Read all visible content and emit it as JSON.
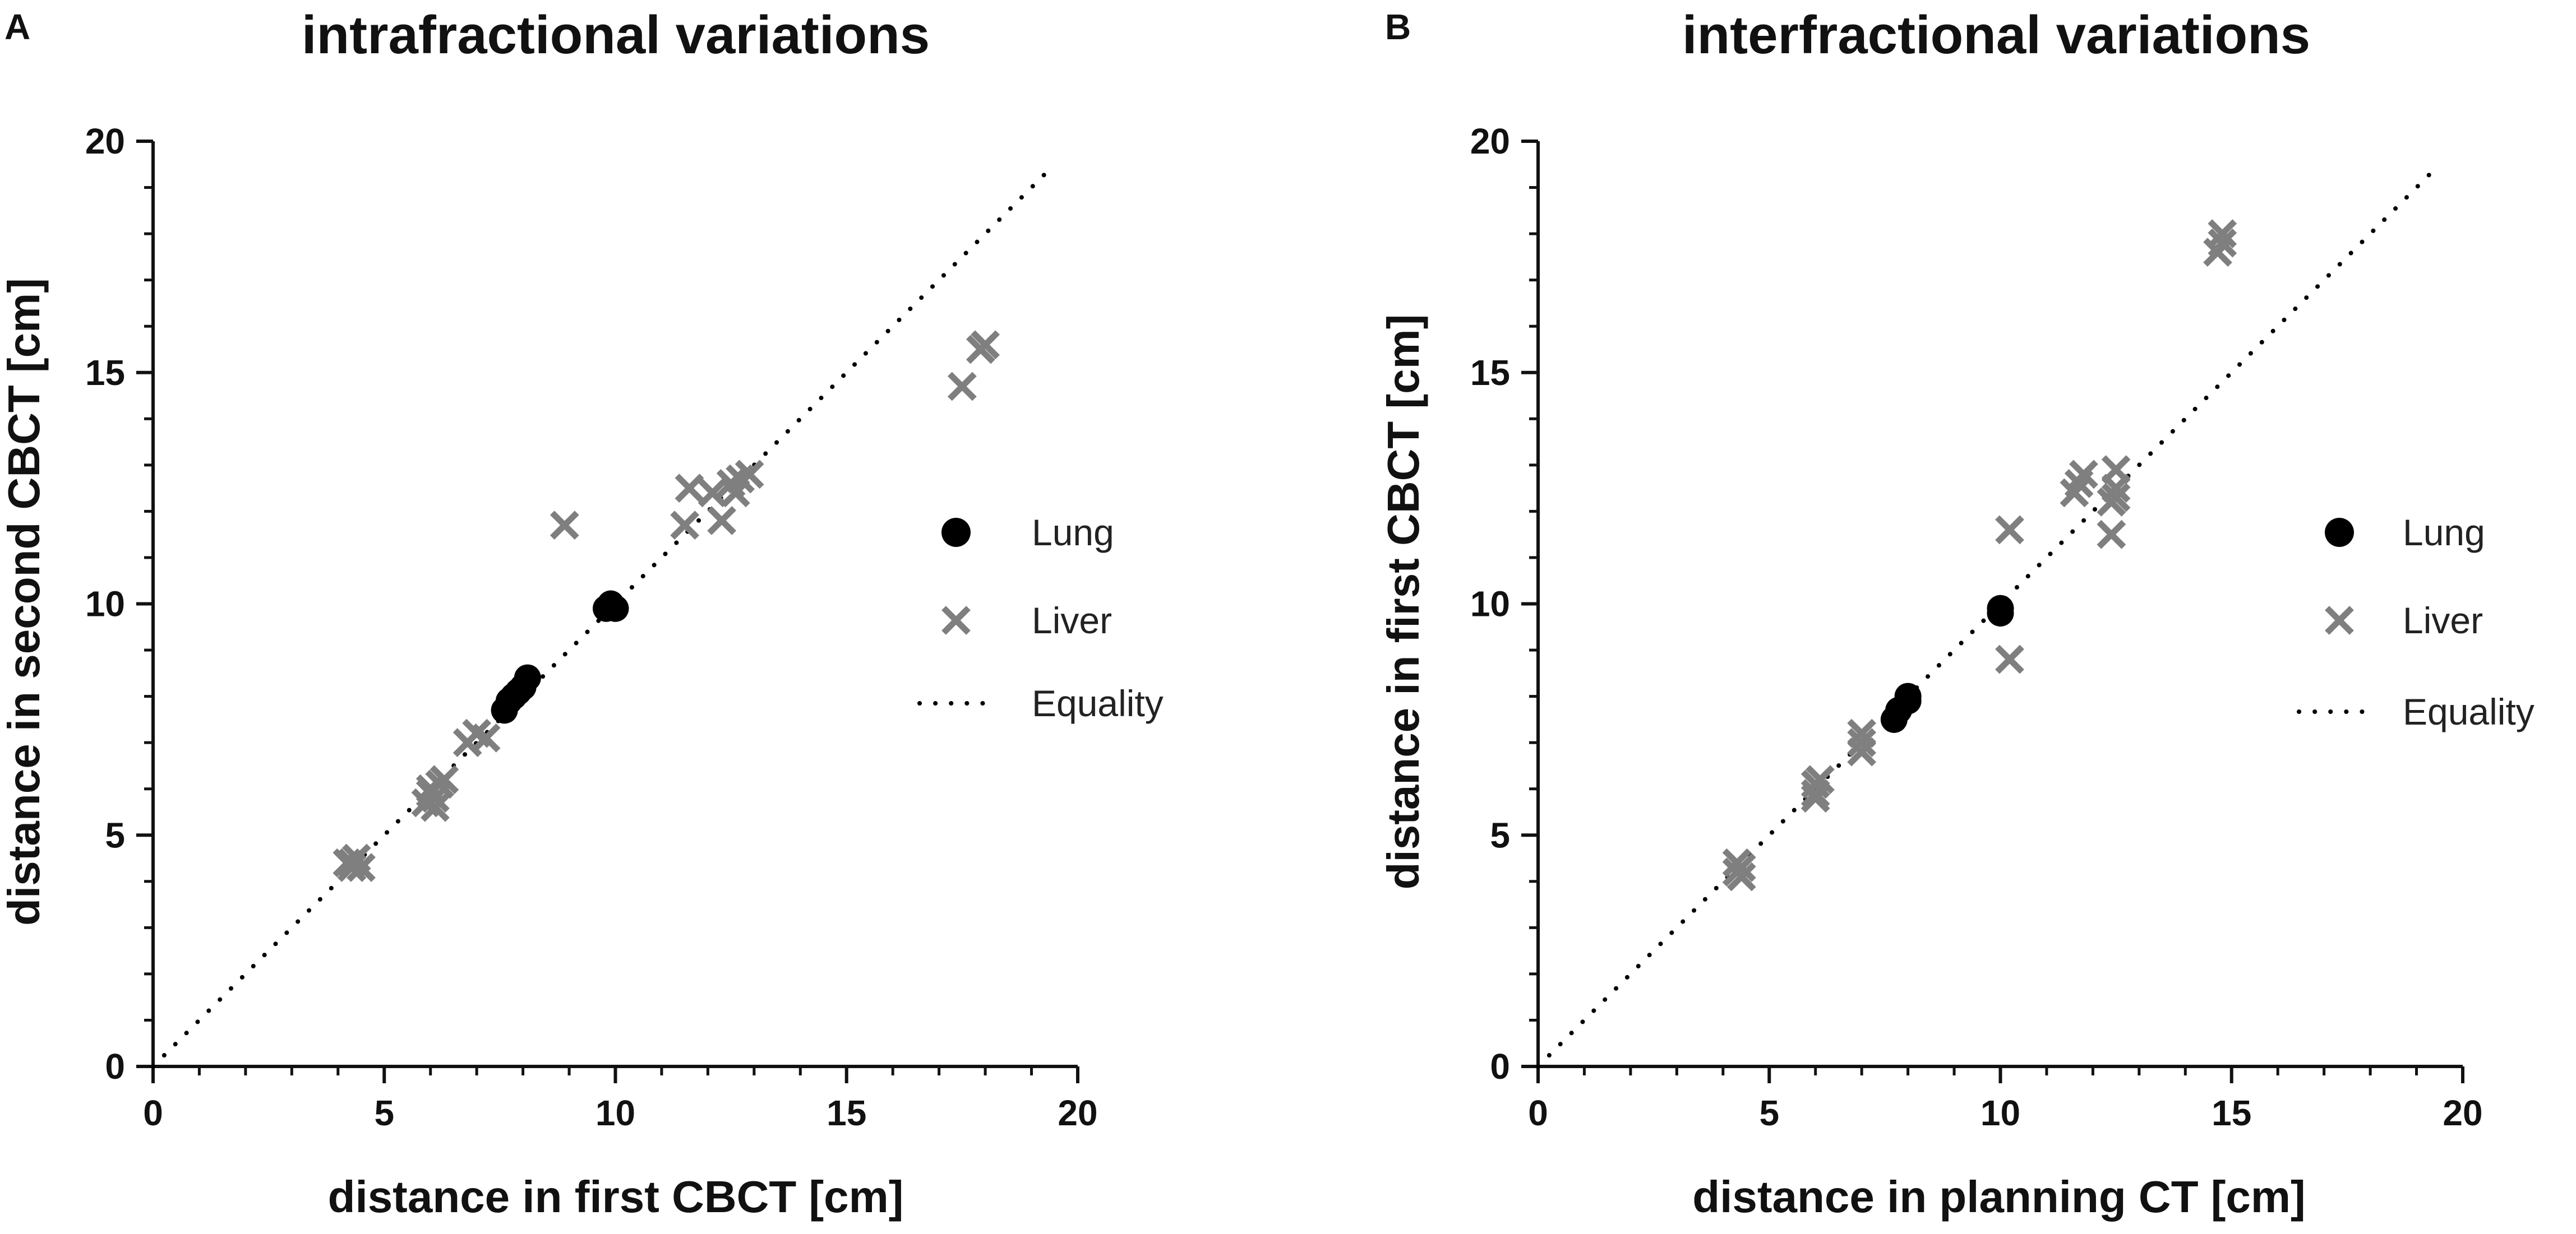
{
  "chart_data": [
    {
      "panel_label": "A",
      "title": "intrafractional variations",
      "type": "scatter",
      "xlabel": "distance in first CBCT [cm]",
      "ylabel": "distance in second CBCT [cm]",
      "xlim": [
        0,
        20
      ],
      "ylim": [
        0,
        20
      ],
      "ticks": [
        "0",
        "5",
        "10",
        "15",
        "20"
      ],
      "series": [
        {
          "name": "Lung",
          "marker": "circle",
          "color": "#000000",
          "points": [
            [
              7.6,
              7.7
            ],
            [
              7.7,
              7.9
            ],
            [
              7.8,
              8.0
            ],
            [
              7.9,
              8.1
            ],
            [
              8.0,
              8.2
            ],
            [
              8.1,
              8.4
            ],
            [
              9.8,
              9.9
            ],
            [
              9.9,
              10.0
            ],
            [
              10.0,
              9.9
            ]
          ]
        },
        {
          "name": "Liver",
          "marker": "x",
          "color": "#7f7f7f",
          "points": [
            [
              4.2,
              4.4
            ],
            [
              4.3,
              4.3
            ],
            [
              4.4,
              4.5
            ],
            [
              4.5,
              4.3
            ],
            [
              4.3,
              4.4
            ],
            [
              5.9,
              5.7
            ],
            [
              6.0,
              5.9
            ],
            [
              6.1,
              5.8
            ],
            [
              6.2,
              6.1
            ],
            [
              6.0,
              6.0
            ],
            [
              6.3,
              6.2
            ],
            [
              6.1,
              5.6
            ],
            [
              6.8,
              7.0
            ],
            [
              7.0,
              7.2
            ],
            [
              7.2,
              7.1
            ],
            [
              8.9,
              11.7
            ],
            [
              11.5,
              11.7
            ],
            [
              11.6,
              12.5
            ],
            [
              12.1,
              12.4
            ],
            [
              12.3,
              11.8
            ],
            [
              12.5,
              12.6
            ],
            [
              12.6,
              12.4
            ],
            [
              12.7,
              12.7
            ],
            [
              12.9,
              12.8
            ],
            [
              17.5,
              14.7
            ],
            [
              17.9,
              15.5
            ],
            [
              18.0,
              15.6
            ]
          ]
        },
        {
          "name": "Equality",
          "marker": "dotted-line",
          "color": "#000000",
          "points": [
            [
              0,
              0
            ],
            [
              19.5,
              19.5
            ]
          ]
        }
      ],
      "legend": {
        "position": "right",
        "entries": [
          "Lung",
          "Liver",
          "Equality"
        ]
      }
    },
    {
      "panel_label": "B",
      "title": "interfractional variations",
      "type": "scatter",
      "xlabel": "distance in planning CT [cm]",
      "ylabel": "distance in first CBCT [cm]",
      "xlim": [
        0,
        20
      ],
      "ylim": [
        0,
        20
      ],
      "ticks": [
        "0",
        "5",
        "10",
        "15",
        "20"
      ],
      "series": [
        {
          "name": "Lung",
          "marker": "circle",
          "color": "#000000",
          "points": [
            [
              7.7,
              7.5
            ],
            [
              7.8,
              7.7
            ],
            [
              8.0,
              7.9
            ],
            [
              8.0,
              8.0
            ],
            [
              10.0,
              9.8
            ],
            [
              10.0,
              9.9
            ]
          ]
        },
        {
          "name": "Liver",
          "marker": "x",
          "color": "#7f7f7f",
          "points": [
            [
              4.3,
              4.2
            ],
            [
              4.4,
              4.3
            ],
            [
              4.3,
              4.4
            ],
            [
              4.4,
              4.1
            ],
            [
              6.0,
              5.9
            ],
            [
              6.0,
              6.1
            ],
            [
              6.1,
              6.2
            ],
            [
              6.0,
              5.8
            ],
            [
              7.0,
              6.8
            ],
            [
              7.0,
              7.0
            ],
            [
              7.0,
              7.2
            ],
            [
              10.2,
              8.8
            ],
            [
              10.2,
              11.6
            ],
            [
              11.6,
              12.4
            ],
            [
              11.7,
              12.6
            ],
            [
              11.8,
              12.8
            ],
            [
              12.4,
              12.2
            ],
            [
              12.5,
              12.5
            ],
            [
              12.5,
              12.9
            ],
            [
              12.4,
              11.5
            ],
            [
              12.5,
              12.3
            ],
            [
              14.7,
              17.6
            ],
            [
              14.8,
              17.8
            ],
            [
              14.8,
              18.0
            ]
          ]
        },
        {
          "name": "Equality",
          "marker": "dotted-line",
          "color": "#000000",
          "points": [
            [
              0,
              0
            ],
            [
              19.5,
              19.5
            ]
          ]
        }
      ],
      "legend": {
        "position": "right",
        "entries": [
          "Lung",
          "Liver",
          "Equality"
        ]
      }
    }
  ]
}
